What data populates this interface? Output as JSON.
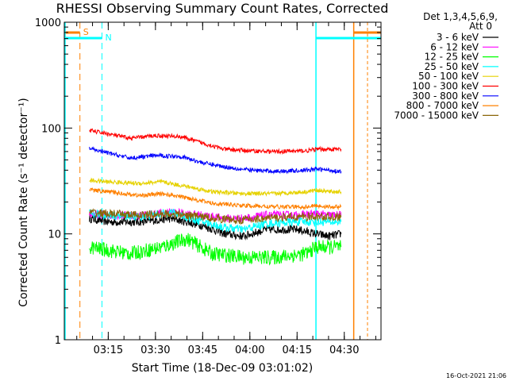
{
  "chart_data": {
    "type": "line",
    "title": "RHESSI Observing Summary Count Rates, Corrected",
    "xlabel": "Start Time (18-Dec-09 03:01:02)",
    "ylabel": "Corrected Count Rate (s⁻¹ detector⁻¹)",
    "y_scale": "log",
    "ylim": [
      1,
      1000
    ],
    "xlim": [
      "03:01:02",
      "04:41:40"
    ],
    "y_ticks": [
      "1",
      "10",
      "100",
      "1000"
    ],
    "x_ticks": [
      "03:15",
      "03:30",
      "03:45",
      "04:00",
      "04:15",
      "04:30"
    ],
    "grid": false,
    "legend_position": "top-right",
    "legend_header": [
      "Det 1,3,4,5,6,9,",
      "Att 0"
    ],
    "series": [
      {
        "name": "3 - 6 keV",
        "color": "#000000",
        "x": [
          "03:09:00",
          "03:15:00",
          "03:25:00",
          "03:35:00",
          "03:45:00",
          "03:52:00",
          "03:58:00",
          "04:05:00",
          "04:15:00",
          "04:21:00",
          "04:25:00",
          "04:29:00"
        ],
        "y": [
          14,
          13,
          13,
          14,
          12,
          10,
          9.5,
          11,
          11,
          10,
          9.5,
          10
        ]
      },
      {
        "name": "6 - 12 keV",
        "color": "#ff00ff",
        "x": [
          "03:09:00",
          "03:15:00",
          "03:25:00",
          "03:35:00",
          "03:45:00",
          "03:52:00",
          "03:58:00",
          "04:05:00",
          "04:15:00",
          "04:21:00",
          "04:25:00",
          "04:29:00"
        ],
        "y": [
          15.5,
          15,
          15,
          16,
          15,
          14,
          14,
          15,
          15,
          15.5,
          15,
          15
        ]
      },
      {
        "name": "12 - 25 keV",
        "color": "#00ff00",
        "x": [
          "03:09:00",
          "03:15:00",
          "03:22:00",
          "03:32:00",
          "03:40:00",
          "03:48:00",
          "03:58:00",
          "04:08:00",
          "04:18:00",
          "04:21:00",
          "04:25:00",
          "04:29:00"
        ],
        "y": [
          7.5,
          7,
          6.5,
          7.5,
          9,
          6.5,
          6,
          6,
          6.5,
          7.5,
          7.5,
          7.5
        ]
      },
      {
        "name": "25 - 50 keV",
        "color": "#00ffff",
        "x": [
          "03:09:00",
          "03:15:00",
          "03:25:00",
          "03:35:00",
          "03:45:00",
          "03:52:00",
          "03:58:00",
          "04:05:00",
          "04:15:00",
          "04:21:00",
          "04:25:00",
          "04:29:00"
        ],
        "y": [
          15.5,
          15,
          14.5,
          16,
          13,
          11.5,
          11,
          12.5,
          13,
          13,
          13,
          13
        ]
      },
      {
        "name": "50 - 100 keV",
        "color": "#e6d200",
        "x": [
          "03:09:00",
          "03:15:00",
          "03:25:00",
          "03:32:00",
          "03:40:00",
          "03:48:00",
          "03:58:00",
          "04:08:00",
          "04:18:00",
          "04:21:00",
          "04:25:00",
          "04:29:00"
        ],
        "y": [
          32,
          31,
          30,
          31,
          28,
          25,
          24,
          24,
          25,
          26,
          25,
          25
        ]
      },
      {
        "name": "100 - 300 keV",
        "color": "#ff0000",
        "x": [
          "03:09:00",
          "03:15:00",
          "03:22:00",
          "03:30:00",
          "03:38:00",
          "03:45:00",
          "03:52:00",
          "04:00:00",
          "04:08:00",
          "04:18:00",
          "04:21:00",
          "04:25:00",
          "04:29:00"
        ],
        "y": [
          95,
          88,
          80,
          85,
          83,
          72,
          63,
          61,
          60,
          61,
          63,
          63,
          63
        ]
      },
      {
        "name": "300 - 800 keV",
        "color": "#0000ff",
        "x": [
          "03:09:00",
          "03:15:00",
          "03:22:00",
          "03:30:00",
          "03:38:00",
          "03:45:00",
          "03:52:00",
          "04:00:00",
          "04:08:00",
          "04:18:00",
          "04:21:00",
          "04:25:00",
          "04:29:00"
        ],
        "y": [
          64,
          58,
          52,
          55,
          54,
          47,
          43,
          40,
          39,
          40,
          41,
          40,
          39
        ]
      },
      {
        "name": "800 - 7000 keV",
        "color": "#ff8000",
        "x": [
          "03:09:00",
          "03:15:00",
          "03:25:00",
          "03:32:00",
          "03:40:00",
          "03:48:00",
          "03:58:00",
          "04:08:00",
          "04:18:00",
          "04:21:00",
          "04:25:00",
          "04:29:00"
        ],
        "y": [
          26,
          25,
          23,
          24,
          22,
          19.5,
          18.5,
          18,
          18,
          18.5,
          18,
          18
        ]
      },
      {
        "name": "7000 - 15000 keV",
        "color": "#8b6508",
        "x": [
          "03:09:00",
          "03:15:00",
          "03:25:00",
          "03:35:00",
          "03:45:00",
          "03:55:00",
          "04:05:00",
          "04:15:00",
          "04:21:00",
          "04:29:00"
        ],
        "y": [
          16,
          15.5,
          15,
          15.5,
          14.5,
          13.5,
          14,
          14.5,
          14.5,
          14.5
        ]
      }
    ],
    "attenuator_markers": [
      {
        "label": "S",
        "color": "#ff8000",
        "x": [
          "03:06:00",
          "04:33:00"
        ]
      },
      {
        "label": "N",
        "color": "#00ffff",
        "x": [
          "03:13:00",
          "04:21:00"
        ]
      }
    ],
    "timestamp": "16-Oct-2021 21:06"
  }
}
